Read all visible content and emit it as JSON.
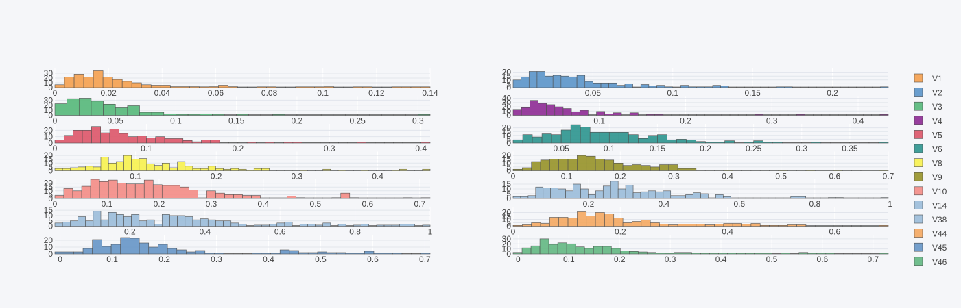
{
  "chart_data": {
    "type": "bar",
    "layout": "grid of 14 histogram subplots, 7 rows by 2 columns, shared legend at right",
    "background": "#f5f6f9",
    "grid": true,
    "legend_position": "right",
    "legend": [
      {
        "name": "V1",
        "color": "#f5a04e"
      },
      {
        "name": "V2",
        "color": "#5b95c9"
      },
      {
        "name": "V3",
        "color": "#55b879"
      },
      {
        "name": "V4",
        "color": "#8e2a93"
      },
      {
        "name": "V5",
        "color": "#dd5568"
      },
      {
        "name": "V6",
        "color": "#2c958e"
      },
      {
        "name": "V8",
        "color": "#f8f24e"
      },
      {
        "name": "V9",
        "color": "#979228"
      },
      {
        "name": "V10",
        "color": "#f48c85"
      },
      {
        "name": "V14",
        "color": "#9bbdd9"
      },
      {
        "name": "V38",
        "color": "#9bbdd9"
      },
      {
        "name": "V44",
        "color": "#f5a860"
      },
      {
        "name": "V45",
        "color": "#6696c6"
      },
      {
        "name": "V46",
        "color": "#63b882"
      }
    ],
    "subplots": [
      {
        "series": "V1",
        "color": "#f5a04e",
        "xlim": [
          0,
          0.14
        ],
        "ylim": [
          0,
          40
        ],
        "xticks": [
          "0",
          "0.02",
          "0.04",
          "0.06",
          "0.08",
          "0.1",
          "0.12",
          "0.14"
        ],
        "xtick_values": [
          0,
          0.02,
          0.04,
          0.06,
          0.08,
          0.1,
          0.12,
          0.14
        ],
        "yticks": [
          "0",
          "10",
          "20",
          "30"
        ],
        "ytick_values": [
          0,
          10,
          20,
          30
        ],
        "bin_edges": [
          0,
          0.14
        ],
        "counts": [
          6,
          22,
          28,
          22,
          35,
          22,
          17,
          13,
          10,
          6,
          5,
          5,
          2,
          2,
          2,
          1,
          2,
          5,
          2,
          0,
          0,
          1,
          1,
          0,
          0,
          1,
          1,
          1,
          2,
          0,
          0,
          1,
          1,
          0,
          0,
          1,
          1,
          1,
          1
        ]
      },
      {
        "series": "V2",
        "color": "#5b95c9",
        "xlim": [
          0,
          0.235
        ],
        "ylim": [
          0,
          25
        ],
        "xticks": [
          "0.05",
          "0.1",
          "0.15",
          "0.2"
        ],
        "xtick_values": [
          0.05,
          0.1,
          0.15,
          0.2
        ],
        "yticks": [
          "0",
          "5",
          "10",
          "15",
          "20"
        ],
        "ytick_values": [
          0,
          5,
          10,
          15,
          20
        ],
        "bin_edges": [
          0,
          0.235
        ],
        "counts": [
          10,
          14,
          21,
          21,
          15,
          16,
          15,
          14,
          16,
          8,
          6,
          6,
          6,
          3,
          5,
          0,
          4,
          2,
          3,
          1,
          0,
          3,
          1,
          1,
          1,
          3,
          2,
          0,
          0,
          0,
          0,
          0,
          0,
          1,
          1,
          0,
          0,
          0,
          0,
          0,
          0,
          0,
          0,
          0,
          0,
          0,
          1
        ]
      },
      {
        "series": "V3",
        "color": "#55b879",
        "xlim": [
          0,
          0.31
        ],
        "ylim": [
          0,
          38
        ],
        "xticks": [
          "0",
          "0.05",
          "0.1",
          "0.15",
          "0.2",
          "0.25",
          "0.3"
        ],
        "xtick_values": [
          0,
          0.05,
          0.1,
          0.15,
          0.2,
          0.25,
          0.3
        ],
        "yticks": [
          "0",
          "10",
          "20",
          "30"
        ],
        "ytick_values": [
          0,
          10,
          20,
          30
        ],
        "bin_edges": [
          0,
          0.31
        ],
        "counts": [
          23,
          33,
          34,
          28,
          22,
          15,
          19,
          6,
          6,
          3,
          2,
          2,
          3,
          2,
          0,
          2,
          0,
          0,
          1,
          0,
          0,
          0,
          0,
          0,
          0,
          0,
          0,
          0,
          0,
          0,
          1
        ]
      },
      {
        "series": "V4",
        "color": "#8e2a93",
        "xlim": [
          0,
          0.435
        ],
        "ylim": [
          0,
          45
        ],
        "xticks": [
          "0.1",
          "0.2",
          "0.3",
          "0.4"
        ],
        "xtick_values": [
          0.1,
          0.2,
          0.3,
          0.4
        ],
        "yticks": [
          "0",
          "10",
          "20",
          "30",
          "40"
        ],
        "ytick_values": [
          0,
          10,
          20,
          30,
          40
        ],
        "bin_edges": [
          0,
          0.435
        ],
        "counts": [
          14,
          18,
          35,
          28,
          25,
          20,
          16,
          8,
          12,
          0,
          9,
          3,
          6,
          0,
          6,
          0,
          2,
          1,
          0,
          0,
          0,
          0,
          0,
          0,
          0,
          0,
          0,
          0,
          0,
          1,
          0,
          0,
          0,
          0,
          1,
          0,
          0,
          0,
          0,
          0,
          0,
          0,
          0,
          0,
          1
        ]
      },
      {
        "series": "V5",
        "color": "#dd5568",
        "xlim": [
          0,
          0.41
        ],
        "ylim": [
          0,
          30
        ],
        "xticks": [
          "0",
          "0.1",
          "0.2",
          "0.3",
          "0.4"
        ],
        "xtick_values": [
          0,
          0.1,
          0.2,
          0.3,
          0.4
        ],
        "yticks": [
          "0",
          "10",
          "20"
        ],
        "ytick_values": [
          0,
          10,
          20
        ],
        "bin_edges": [
          0,
          0.41
        ],
        "counts": [
          5,
          12,
          20,
          20,
          26,
          16,
          22,
          15,
          10,
          11,
          8,
          10,
          7,
          7,
          4,
          2,
          5,
          5,
          0,
          0,
          0,
          1,
          0,
          1,
          0,
          1,
          1,
          0,
          0,
          0,
          0,
          0,
          0,
          1,
          0,
          0,
          0,
          0,
          0,
          0,
          1
        ]
      },
      {
        "series": "V6",
        "color": "#2c958e",
        "xlim": [
          0,
          0.39
        ],
        "ylim": [
          0,
          25
        ],
        "xticks": [
          "0.05",
          "0.1",
          "0.15",
          "0.2",
          "0.25",
          "0.3",
          "0.35"
        ],
        "xtick_values": [
          0.05,
          0.1,
          0.15,
          0.2,
          0.25,
          0.3,
          0.35
        ],
        "yticks": [
          "0",
          "5",
          "10",
          "15",
          "20"
        ],
        "ytick_values": [
          0,
          5,
          10,
          15,
          20
        ],
        "bin_edges": [
          0,
          0.39
        ],
        "counts": [
          4,
          11,
          8,
          12,
          11,
          17,
          24,
          21,
          14,
          14,
          14,
          14,
          11,
          6,
          10,
          11,
          4,
          5,
          4,
          2,
          1,
          1,
          3,
          0,
          1,
          3,
          1,
          1,
          0,
          0,
          0,
          1,
          0,
          0,
          0,
          0,
          0,
          0,
          1
        ]
      },
      {
        "series": "V8",
        "color": "#f8f24e",
        "xlim": [
          0,
          0.465
        ],
        "ylim": [
          0,
          25
        ],
        "xticks": [
          "0.1",
          "0.2",
          "0.3",
          "0.4"
        ],
        "xtick_values": [
          0.1,
          0.2,
          0.3,
          0.4
        ],
        "yticks": [
          "0",
          "5",
          "10",
          "15",
          "20"
        ],
        "ytick_values": [
          0,
          5,
          10,
          15,
          20
        ],
        "bin_edges": [
          0,
          0.465
        ],
        "counts": [
          3,
          3,
          4,
          5,
          6,
          5,
          18,
          10,
          12,
          20,
          15,
          16,
          9,
          7,
          10,
          4,
          12,
          6,
          3,
          3,
          6,
          3,
          2,
          3,
          2,
          1,
          3,
          3,
          0,
          0,
          0,
          0,
          1,
          0,
          0,
          2,
          0,
          1,
          0,
          0,
          1,
          0,
          0,
          0,
          1,
          2,
          0,
          0,
          2
        ]
      },
      {
        "series": "V9",
        "color": "#979228",
        "xlim": [
          0,
          0.7
        ],
        "ylim": [
          0,
          25
        ],
        "xticks": [
          "0",
          "0.1",
          "0.2",
          "0.3",
          "0.4",
          "0.5",
          "0.6",
          "0.7"
        ],
        "xtick_values": [
          0,
          0.1,
          0.2,
          0.3,
          0.4,
          0.5,
          0.6,
          0.7
        ],
        "yticks": [
          "0",
          "5",
          "10",
          "15",
          "20"
        ],
        "ytick_values": [
          0,
          5,
          10,
          15,
          20
        ],
        "bin_edges": [
          0,
          0.7
        ],
        "counts": [
          2,
          4,
          12,
          14,
          15,
          15,
          15,
          20,
          19,
          15,
          14,
          10,
          7,
          8,
          7,
          5,
          8,
          8,
          3,
          3,
          0,
          0,
          0,
          1,
          0,
          0,
          0,
          0,
          0,
          1,
          0,
          0,
          1,
          0,
          0,
          1,
          0,
          0,
          0,
          0,
          1
        ]
      },
      {
        "series": "V10",
        "color": "#f48c85",
        "xlim": [
          0,
          0.72
        ],
        "ylim": [
          0,
          25
        ],
        "xticks": [
          "0",
          "0.1",
          "0.2",
          "0.3",
          "0.4",
          "0.5",
          "0.6",
          "0.7"
        ],
        "xtick_values": [
          0,
          0.1,
          0.2,
          0.3,
          0.4,
          0.5,
          0.6,
          0.7
        ],
        "yticks": [
          "0",
          "5",
          "10",
          "15",
          "20"
        ],
        "ytick_values": [
          0,
          5,
          10,
          15,
          20
        ],
        "bin_edges": [
          0,
          0.72
        ],
        "counts": [
          4,
          13,
          10,
          16,
          25,
          22,
          24,
          20,
          19,
          19,
          24,
          18,
          17,
          17,
          15,
          11,
          0,
          10,
          7,
          5,
          5,
          4,
          4,
          0,
          0,
          0,
          3,
          1,
          0,
          0,
          0,
          1,
          7,
          1,
          0,
          0,
          0,
          0,
          0,
          1,
          0,
          1
        ]
      },
      {
        "series": "V14",
        "color": "#9bbdd9",
        "xlim": [
          0,
          0.995
        ],
        "ylim": [
          0,
          20
        ],
        "xticks": [
          "0.2",
          "0.4",
          "0.6",
          "0.8",
          "1"
        ],
        "xtick_values": [
          0.2,
          0.4,
          0.6,
          0.8,
          1
        ],
        "yticks": [
          "0",
          "5",
          "10",
          "15"
        ],
        "ytick_values": [
          0,
          5,
          10,
          15
        ],
        "bin_edges": [
          0,
          0.995
        ],
        "counts": [
          2,
          2,
          3,
          12,
          11,
          11,
          10,
          8,
          15,
          10,
          4,
          8,
          13,
          18,
          10,
          14,
          6,
          7,
          8,
          7,
          8,
          3,
          3,
          4,
          6,
          5,
          0,
          4,
          2,
          0,
          0,
          0,
          0,
          0,
          0,
          0,
          0,
          2,
          2,
          0,
          0,
          0,
          1,
          1,
          0,
          0,
          0,
          0,
          0,
          1
        ]
      },
      {
        "series": "V38",
        "color": "#9bbdd9",
        "xlim": [
          0,
          1.0
        ],
        "ylim": [
          0,
          18
        ],
        "xticks": [
          "0.2",
          "0.4",
          "0.6",
          "0.8",
          "1"
        ],
        "xtick_values": [
          0.2,
          0.4,
          0.6,
          0.8,
          1
        ],
        "yticks": [
          "0",
          "5",
          "10",
          "15"
        ],
        "ytick_values": [
          0,
          5,
          10,
          15
        ],
        "bin_edges": [
          0,
          1.0
        ],
        "counts": [
          3,
          4,
          5,
          9,
          5,
          14,
          6,
          13,
          11,
          9,
          11,
          5,
          6,
          2,
          11,
          10,
          10,
          9,
          6,
          7,
          6,
          5,
          5,
          3,
          2,
          0,
          1,
          1,
          2,
          3,
          4,
          0,
          2,
          2,
          1,
          3,
          0,
          2,
          0,
          1,
          2,
          0,
          1,
          1,
          1,
          2,
          2,
          0,
          1
        ]
      },
      {
        "series": "V44",
        "color": "#f5a860",
        "xlim": [
          0,
          0.7
        ],
        "ylim": [
          0,
          28
        ],
        "xticks": [
          "0",
          "0.2",
          "0.4",
          "0.6"
        ],
        "xtick_values": [
          0,
          0.2,
          0.4,
          0.6
        ],
        "yticks": [
          "0",
          "5",
          "10",
          "15",
          "20"
        ],
        "ytick_values": [
          0,
          5,
          10,
          15,
          20
        ],
        "bin_edges": [
          0,
          0.7
        ],
        "counts": [
          1,
          2,
          5,
          4,
          13,
          13,
          12,
          21,
          15,
          20,
          18,
          12,
          5,
          7,
          9,
          5,
          3,
          2,
          3,
          3,
          3,
          2,
          3,
          4,
          4,
          3,
          4,
          1,
          1,
          1,
          2,
          2,
          0,
          0,
          0,
          0,
          0,
          0,
          0,
          0,
          1
        ]
      },
      {
        "series": "V45",
        "color": "#6696c6",
        "xlim": [
          -0.01,
          0.71
        ],
        "ylim": [
          0,
          28
        ],
        "xticks": [
          "0",
          "0.1",
          "0.2",
          "0.3",
          "0.4",
          "0.5",
          "0.6",
          "0.7"
        ],
        "xtick_values": [
          0,
          0.1,
          0.2,
          0.3,
          0.4,
          0.5,
          0.6,
          0.7
        ],
        "yticks": [
          "0",
          "10",
          "20"
        ],
        "ytick_values": [
          0,
          10,
          20
        ],
        "bin_edges": [
          -0.01,
          0.71
        ],
        "counts": [
          3,
          3,
          3,
          8,
          21,
          11,
          14,
          24,
          23,
          16,
          10,
          14,
          8,
          6,
          3,
          5,
          1,
          1,
          0,
          0,
          0,
          1,
          1,
          1,
          6,
          5,
          2,
          2,
          3,
          2,
          2,
          1,
          1,
          4,
          1,
          1,
          1,
          0,
          0,
          1
        ]
      },
      {
        "series": "V46",
        "color": "#63b882",
        "xlim": [
          -0.01,
          0.73
        ],
        "ylim": [
          0,
          38
        ],
        "xticks": [
          "0",
          "0.1",
          "0.2",
          "0.3",
          "0.4",
          "0.5",
          "0.6",
          "0.7"
        ],
        "xtick_values": [
          0,
          0.1,
          0.2,
          0.3,
          0.4,
          0.5,
          0.6,
          0.7
        ],
        "yticks": [
          "0",
          "10",
          "20",
          "30"
        ],
        "ytick_values": [
          0,
          10,
          20,
          30
        ],
        "bin_edges": [
          -0.01,
          0.73
        ],
        "counts": [
          3,
          12,
          16,
          30,
          19,
          22,
          20,
          14,
          11,
          15,
          15,
          11,
          6,
          5,
          4,
          3,
          2,
          1,
          3,
          3,
          2,
          1,
          1,
          2,
          2,
          1,
          1,
          1,
          1,
          0,
          2,
          0,
          3,
          1,
          1,
          1,
          0,
          0,
          0,
          0,
          0,
          1
        ]
      }
    ]
  }
}
